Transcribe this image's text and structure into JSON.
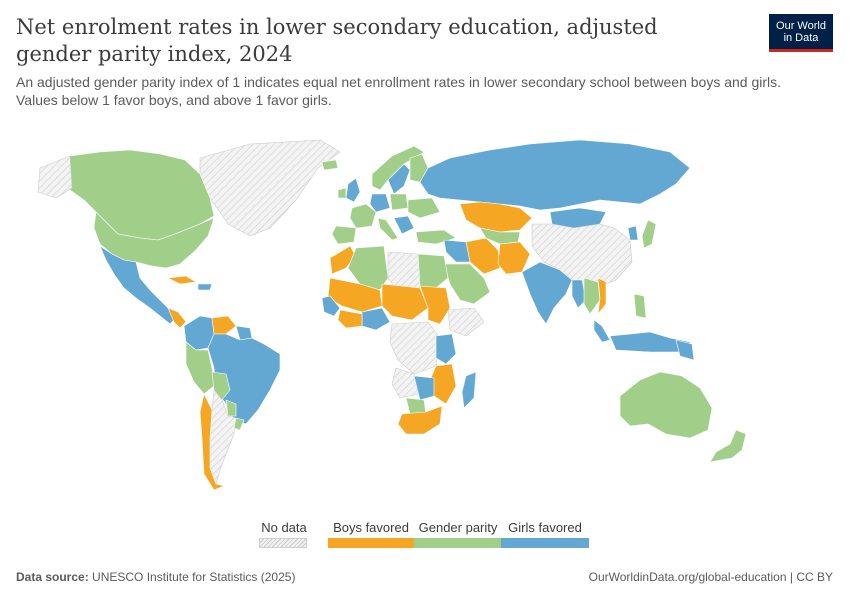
{
  "header": {
    "title": "Net enrolment rates in lower secondary education, adjusted gender parity index, 2024",
    "subtitle": "An adjusted gender parity index of 1 indicates equal net enrollment rates in lower secondary school between boys and girls. Values below 1 favor boys, and above 1 favor girls."
  },
  "logo": {
    "line1": "Our World",
    "line2": "in Data"
  },
  "legend": {
    "nodata": "No data",
    "boys": "Boys favored",
    "parity": "Gender parity",
    "girls": "Girls favored"
  },
  "colors": {
    "boys": "#f5a623",
    "parity": "#a1cf8a",
    "girls": "#62a8d3",
    "nodata": "#e3e3e3"
  },
  "footer": {
    "source_label": "Data source:",
    "source": "UNESCO Institute for Statistics (2025)",
    "link": "OurWorldinData.org/global-education | CC BY"
  }
}
